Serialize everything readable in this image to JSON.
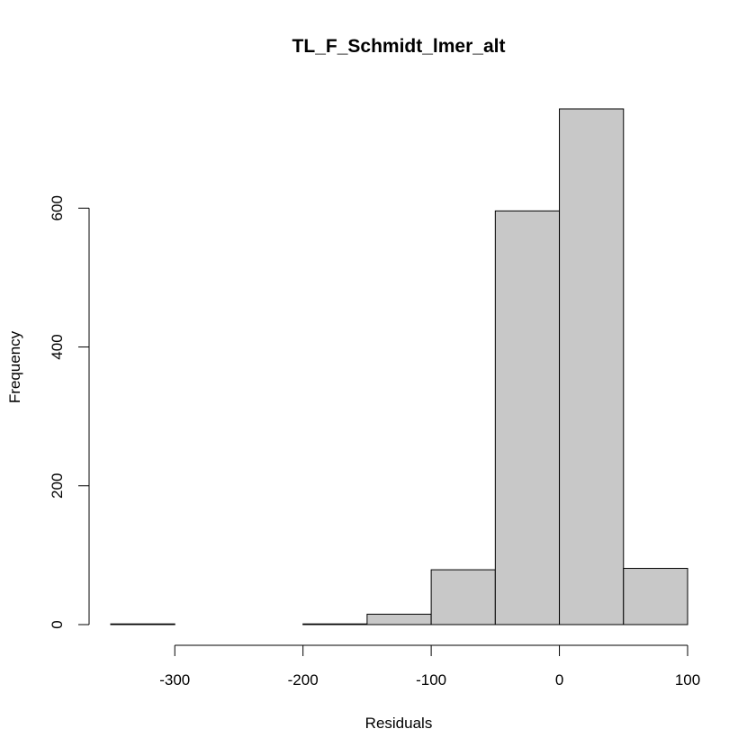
{
  "chart_data": {
    "type": "histogram",
    "title": "TL_F_Schmidt_lmer_alt",
    "xlabel": "Residuals",
    "ylabel": "Frequency",
    "bin_edges": [
      -350,
      -300,
      -250,
      -200,
      -150,
      -100,
      -50,
      0,
      50,
      100
    ],
    "values": [
      1,
      0,
      0,
      1,
      15,
      79,
      596,
      743,
      81
    ],
    "xlim": [
      -350,
      100
    ],
    "ylim": [
      0,
      743
    ],
    "x_ticks": [
      -300,
      -200,
      -100,
      0,
      100
    ],
    "x_tick_labels": [
      "-300",
      "-200",
      "-100",
      "0",
      "100"
    ],
    "y_ticks": [
      0,
      200,
      400,
      600
    ],
    "y_tick_labels": [
      "0",
      "200",
      "400",
      "600"
    ],
    "bar_fill": "#c8c8c8",
    "bar_stroke": "#000000",
    "grid": false,
    "legend": "none"
  }
}
